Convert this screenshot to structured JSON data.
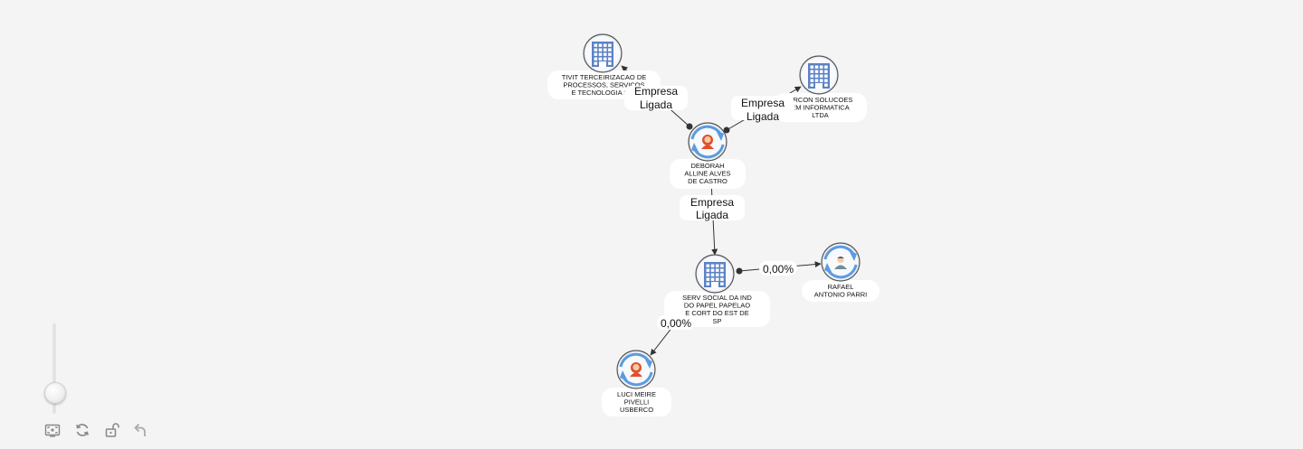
{
  "nodes": [
    {
      "id": "tivit",
      "kind": "company",
      "label": [
        "TIVIT TERCEIRIZACAO DE",
        "PROCESSOS, SERVICOS",
        "E TECNOLOGIA S.A."
      ]
    },
    {
      "id": "grcon",
      "kind": "company",
      "label": [
        "GRCON SOLUCOES",
        "EM INFORMATICA",
        "LTDA"
      ]
    },
    {
      "id": "deborah",
      "kind": "person-female",
      "label": [
        "DEBORAH",
        "ALLINE ALVES",
        "DE CASTRO"
      ]
    },
    {
      "id": "serv",
      "kind": "company",
      "label": [
        "SERV SOCIAL DA IND",
        "DO PAPEL PAPELAO",
        "E CORT DO EST DE",
        "SP"
      ]
    },
    {
      "id": "rafael",
      "kind": "person-male",
      "label": [
        "RAFAEL",
        "ANTONIO PARRI"
      ]
    },
    {
      "id": "luci",
      "kind": "person-female",
      "label": [
        "LUCI MEIRE",
        "PIVELLI",
        "USBERCO"
      ]
    }
  ],
  "edges": [
    {
      "id": "deborah-tivit",
      "from": "deborah",
      "to": "tivit",
      "label": [
        "Empresa",
        "Ligada"
      ]
    },
    {
      "id": "deborah-grcon",
      "from": "deborah",
      "to": "grcon",
      "label": [
        "Empresa",
        "Ligada"
      ]
    },
    {
      "id": "deborah-serv",
      "from": "deborah",
      "to": "serv",
      "label": [
        "Empresa",
        "Ligada"
      ]
    },
    {
      "id": "serv-rafael",
      "from": "serv",
      "to": "rafael",
      "label": [
        "0,00%"
      ]
    },
    {
      "id": "serv-luci",
      "from": "serv",
      "to": "luci",
      "label": [
        "0,00%"
      ]
    }
  ],
  "zoom": {
    "level": 0.22
  },
  "toolbar": {
    "fit_icon": "fit-screen-icon",
    "refresh_icon": "refresh-icon",
    "lock_icon": "unlock-icon",
    "undo_icon": "undo-icon"
  },
  "colors": {
    "background": "#f4f4f4",
    "company_icon": "#5b82c4",
    "cycle_arrows": "#5b9be0",
    "female_avatar": "#e0502a",
    "male_avatar": "#6f8f96"
  }
}
